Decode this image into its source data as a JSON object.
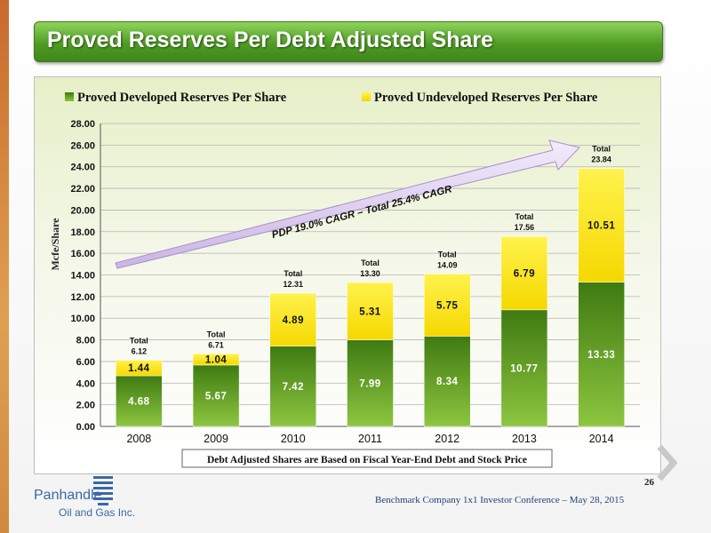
{
  "slide": {
    "title": "Proved Reserves Per Debt Adjusted Share",
    "page_number": "26",
    "footer": "Benchmark Company 1x1 Investor  Conference – May 28, 2015",
    "logo_text_line1": "Panhandle",
    "logo_text_line2": "Oil and Gas Inc."
  },
  "chart_data": {
    "type": "bar",
    "stacked": true,
    "categories": [
      "2008",
      "2009",
      "2010",
      "2011",
      "2012",
      "2013",
      "2014"
    ],
    "series": [
      {
        "name": "Proved Developed Reserves Per Share",
        "color": "#5c9a1e",
        "values": [
          4.68,
          5.67,
          7.42,
          7.99,
          8.34,
          10.77,
          13.33
        ],
        "labels": [
          "4.68",
          "5.67",
          "7.42",
          "7.99",
          "8.34",
          "10.77",
          "13.33"
        ]
      },
      {
        "name": "Proved Undeveloped Reserves Per Share",
        "color": "#ffe600",
        "values": [
          1.44,
          1.04,
          4.89,
          5.31,
          5.75,
          6.79,
          10.51
        ],
        "labels": [
          "1.44",
          "1.04",
          "4.89",
          "5.31",
          "5.75",
          "6.79",
          "10.51"
        ]
      }
    ],
    "totals": [
      "6.12",
      "6.71",
      "12.31",
      "13.30",
      "14.09",
      "17.56",
      "23.84"
    ],
    "total_label": "Total",
    "ylabel": "Mcfe/Share",
    "ylim": [
      0,
      28
    ],
    "yticks": [
      "0.00",
      "2.00",
      "4.00",
      "6.00",
      "8.00",
      "10.00",
      "12.00",
      "14.00",
      "16.00",
      "18.00",
      "20.00",
      "22.00",
      "24.00",
      "26.00",
      "28.00"
    ],
    "gridlines": true,
    "legend_position": "top",
    "arrow_annotation": "PDP 19.0% CAGR – Total 25.4% CAGR",
    "x_note": "Debt Adjusted Shares are Based on Fiscal Year-End Debt and Stock Price"
  }
}
